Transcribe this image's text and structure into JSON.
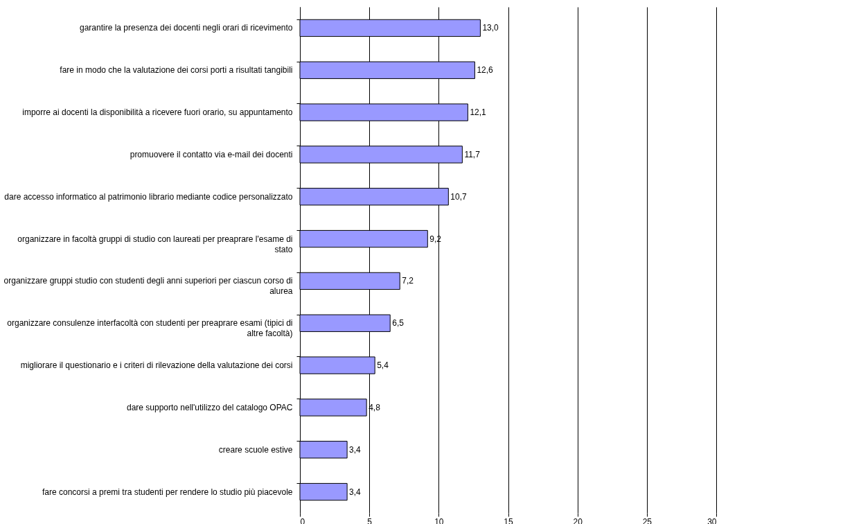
{
  "chart_data": {
    "type": "bar",
    "orientation": "horizontal",
    "categories": [
      "garantire la presenza dei docenti negli orari di ricevimento",
      "fare in modo che la valutazione dei corsi porti a risultati tangibili",
      "imporre ai docenti la disponibilità a ricevere fuori orario, su appuntamento",
      "promuovere il contatto via e-mail dei docenti",
      "dare accesso informatico al patrimonio librario mediante codice personalizzato",
      "organizzare in facoltà gruppi di studio con laureati per preaprare l'esame di stato",
      "organizzare gruppi studio con studenti degli anni superiori per ciascun corso di alurea",
      "organizzare consulenze interfacoltà con studenti per preaprare esami (tipici di altre facoltà)",
      "migliorare il questionario e i criteri di rilevazione della valutazione dei corsi",
      "dare supporto nell'utilizzo del catalogo OPAC",
      "creare scuole estive",
      "fare concorsi a premi tra studenti per rendere lo studio più piacevole"
    ],
    "values": [
      13.0,
      12.6,
      12.1,
      11.7,
      10.7,
      9.2,
      7.2,
      6.5,
      5.4,
      4.8,
      3.4,
      3.4
    ],
    "value_labels": [
      "13,0",
      "12,6",
      "12,1",
      "11,7",
      "10,7",
      "9,2",
      "7,2",
      "6,5",
      "5,4",
      "4,8",
      "3,4",
      "3,4"
    ],
    "color": "#9999ff",
    "xlim": [
      0,
      30
    ],
    "xticks": [
      0,
      5,
      10,
      15,
      20,
      25,
      30
    ],
    "grid": "x"
  }
}
